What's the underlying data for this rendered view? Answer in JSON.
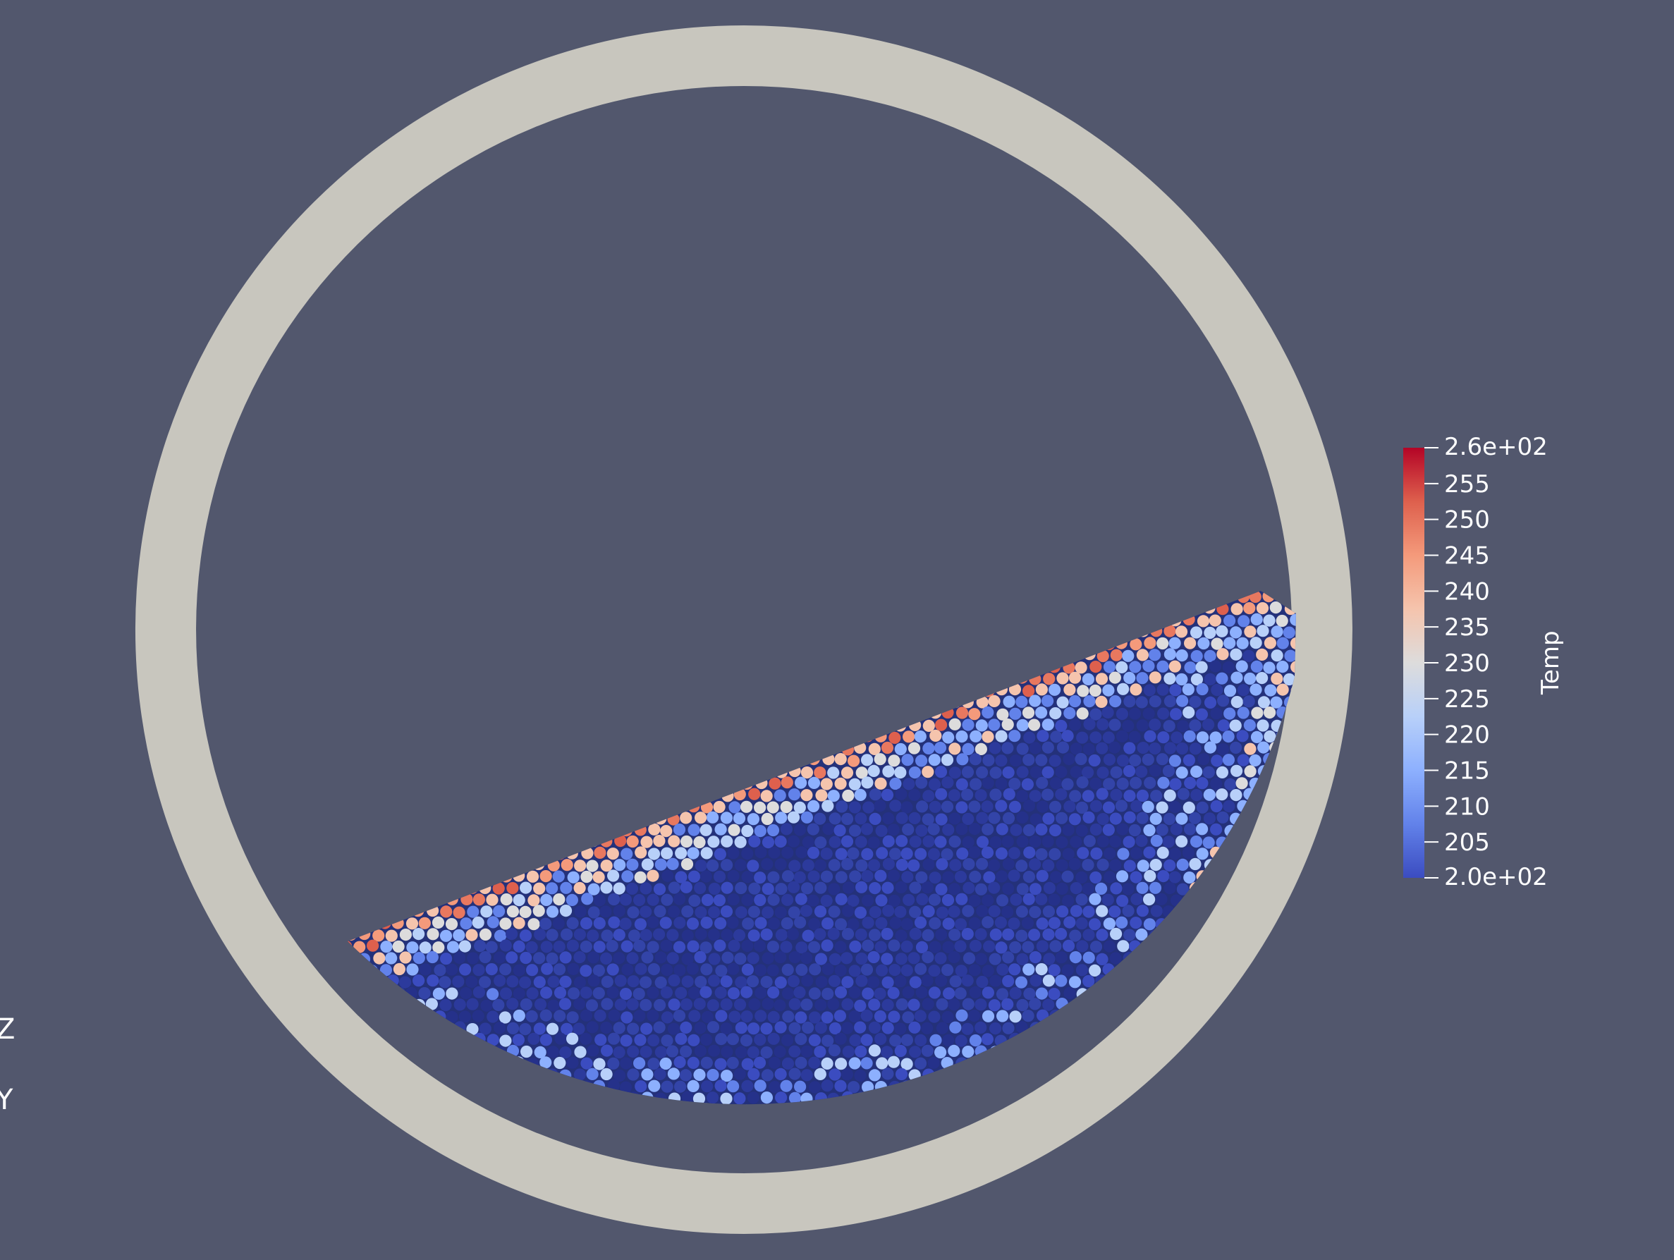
{
  "scene": {
    "background": "#52576d",
    "drum_color": "#c8c6be"
  },
  "colorbar": {
    "title": "Temp",
    "max_label": "2.6e+02",
    "min_label": "2.0e+02",
    "tick_labels": [
      "255",
      "250",
      "245",
      "240",
      "235",
      "230",
      "225",
      "220",
      "215",
      "210",
      "205"
    ],
    "range": [
      200,
      260
    ],
    "colormap": [
      "#3b4cc0",
      "#6282ea",
      "#8db0fe",
      "#b8d0f9",
      "#dddcdc",
      "#f5c4ad",
      "#f49a7b",
      "#de604d",
      "#b40426"
    ]
  },
  "orientation_axes": {
    "labels": [
      "Z",
      "Y"
    ]
  }
}
